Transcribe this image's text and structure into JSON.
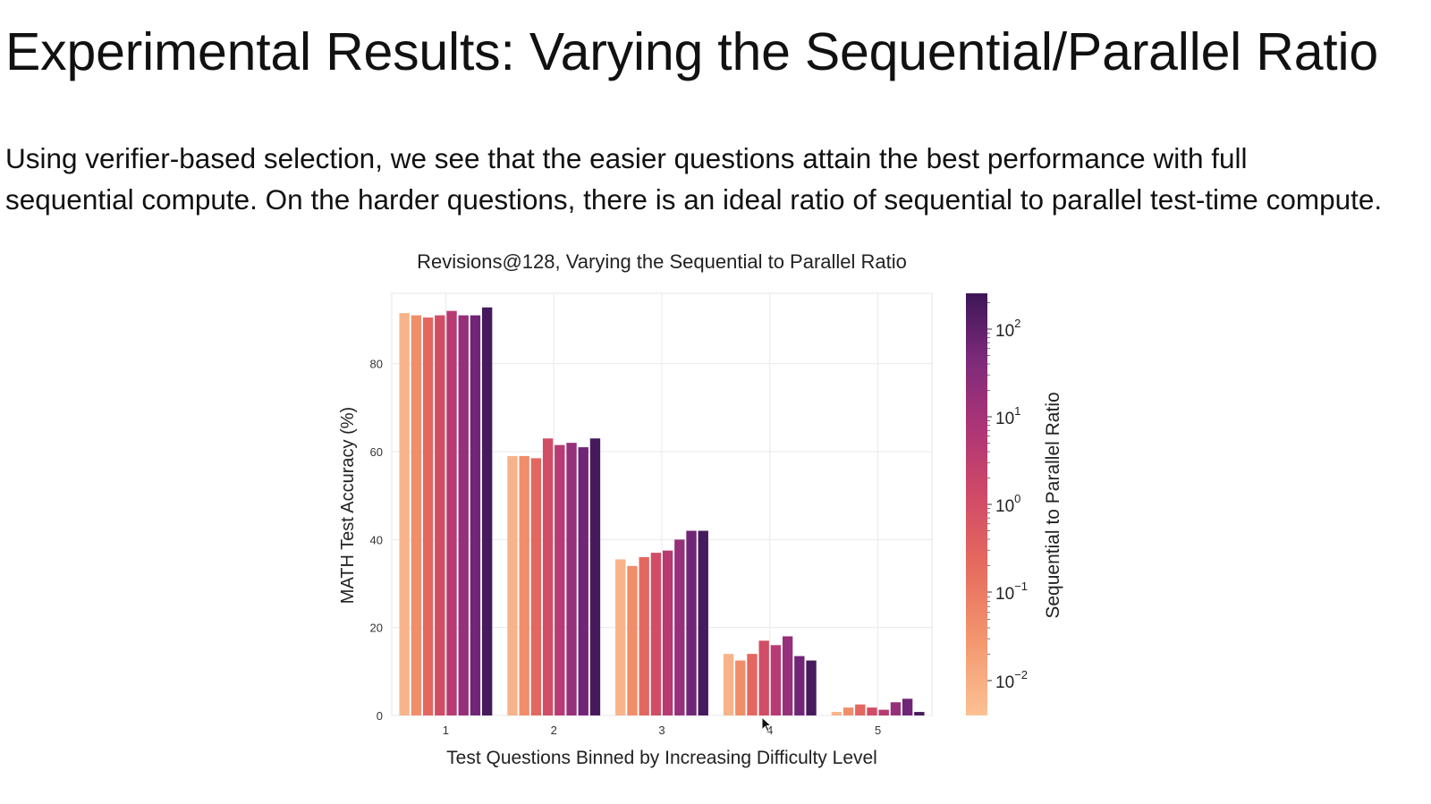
{
  "slide": {
    "title": "Experimental Results: Varying the Sequential/Parallel Ratio",
    "body": "Using verifier-based selection, we see that the easier questions attain the best performance with full sequential compute. On the harder questions, there is an ideal ratio of sequential to parallel test-time compute."
  },
  "chart_data": {
    "type": "bar",
    "title": "Revisions@128, Varying the Sequential to Parallel Ratio",
    "xlabel": "Test Questions Binned by Increasing Difficulty Level",
    "ylabel": "MATH Test Accuracy (%)",
    "categories": [
      "1",
      "2",
      "3",
      "4",
      "5"
    ],
    "ylim": [
      0,
      96
    ],
    "yticks": [
      0,
      20,
      40,
      60,
      80
    ],
    "grid": true,
    "values": [
      [
        91.5,
        91.0,
        90.5,
        91.0,
        92.0,
        91.0,
        91.0,
        92.8
      ],
      [
        59.0,
        59.0,
        58.5,
        63.0,
        61.5,
        62.0,
        61.0,
        63.0
      ],
      [
        35.5,
        34.0,
        36.0,
        37.0,
        37.5,
        40.0,
        42.0,
        42.0
      ],
      [
        14.0,
        12.5,
        14.0,
        17.0,
        16.0,
        18.0,
        13.5,
        12.5
      ],
      [
        0.8,
        1.8,
        2.5,
        1.8,
        1.3,
        3.0,
        3.8,
        0.8
      ]
    ],
    "colorbar": {
      "label": "Sequential to Parallel Ratio",
      "scale": "log",
      "ticks": [
        {
          "base": "10",
          "exp": "−2"
        },
        {
          "base": "10",
          "exp": "−1"
        },
        {
          "base": "10",
          "exp": "0"
        },
        {
          "base": "10",
          "exp": "1"
        },
        {
          "base": "10",
          "exp": "2"
        }
      ],
      "colors": [
        "#f7b48a",
        "#f08e6a",
        "#e3675f",
        "#d14d66",
        "#b83a72",
        "#96307a",
        "#702577",
        "#471a5e"
      ]
    }
  }
}
